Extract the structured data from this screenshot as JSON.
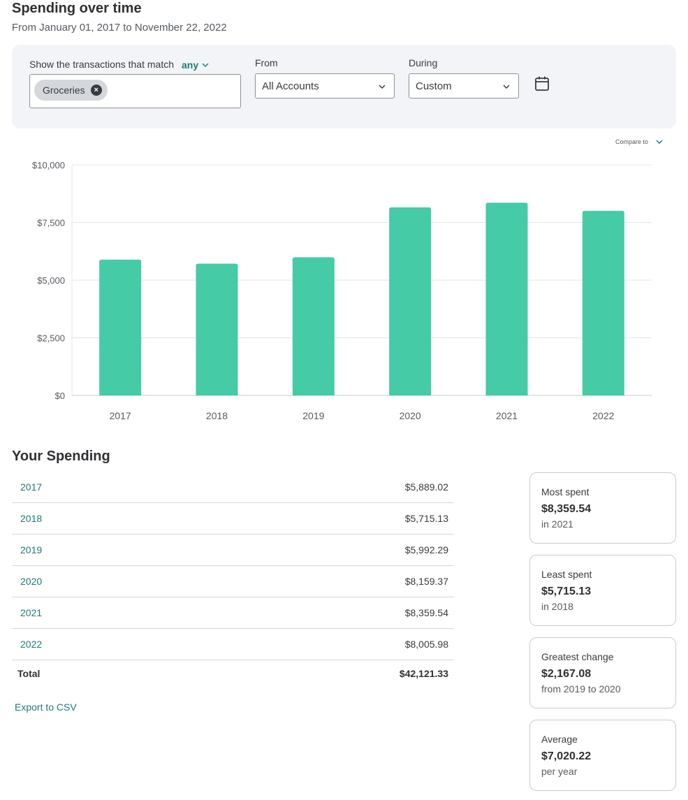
{
  "header": {
    "title": "Spending over time",
    "subtitle": "From January 01, 2017 to November 22, 2022"
  },
  "filters": {
    "match_label": "Show the transactions that match",
    "match_value": "any",
    "tags": [
      "Groceries"
    ],
    "from_label": "From",
    "from_value": "All Accounts",
    "during_label": "During",
    "during_value": "Custom"
  },
  "compare_label": "Compare to",
  "chart_data": {
    "type": "bar",
    "categories": [
      "2017",
      "2018",
      "2019",
      "2020",
      "2021",
      "2022"
    ],
    "values": [
      5889.02,
      5715.13,
      5992.29,
      8159.37,
      8359.54,
      8005.98
    ],
    "ylim": [
      0,
      10000
    ],
    "ytick_labels": [
      "$0",
      "$2,500",
      "$5,000",
      "$7,500",
      "$10,000"
    ],
    "ytick_values": [
      0,
      2500,
      5000,
      7500,
      10000
    ],
    "grid": true,
    "bar_color": "#45cba6"
  },
  "spending": {
    "title": "Your Spending",
    "rows": [
      {
        "year": "2017",
        "amount": "$5,889.02"
      },
      {
        "year": "2018",
        "amount": "$5,715.13"
      },
      {
        "year": "2019",
        "amount": "$5,992.29"
      },
      {
        "year": "2020",
        "amount": "$8,159.37"
      },
      {
        "year": "2021",
        "amount": "$8,359.54"
      },
      {
        "year": "2022",
        "amount": "$8,005.98"
      }
    ],
    "total_label": "Total",
    "total_amount": "$42,121.33",
    "export_label": "Export to CSV"
  },
  "stats": [
    {
      "label": "Most spent",
      "value": "$8,359.54",
      "sub": "in 2021"
    },
    {
      "label": "Least spent",
      "value": "$5,715.13",
      "sub": "in 2018"
    },
    {
      "label": "Greatest change",
      "value": "$2,167.08",
      "sub": "from 2019 to 2020"
    },
    {
      "label": "Average",
      "value": "$7,020.22",
      "sub": "per year"
    }
  ],
  "colors": {
    "accent": "#1f7a78",
    "bar": "#45cba6",
    "panel": "#f3f4f7"
  }
}
